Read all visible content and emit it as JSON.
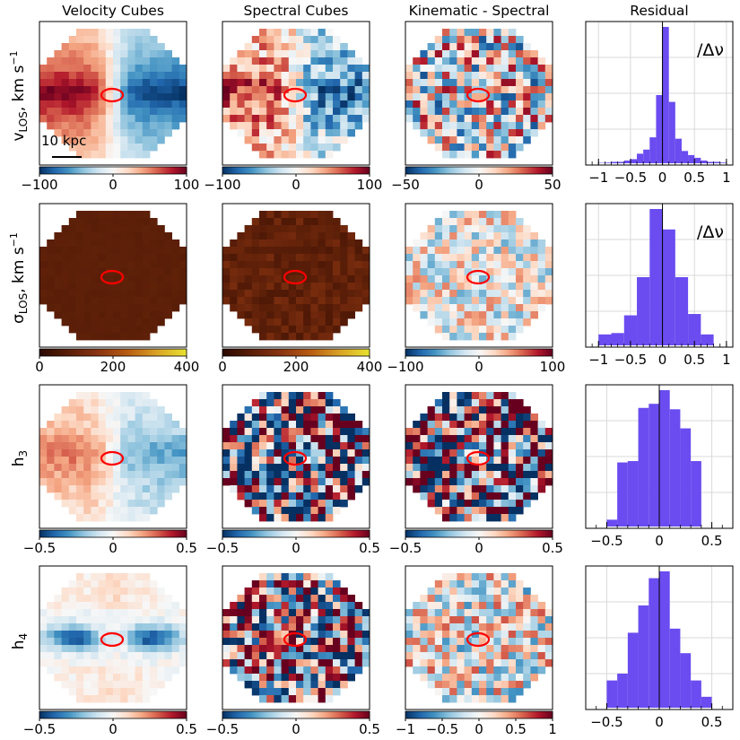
{
  "chart_data": {
    "type": "figure-grid",
    "column_titles": [
      "Velocity Cubes",
      "Spectral Cubes",
      "Kinematic - Spectral",
      "Residual"
    ],
    "row_labels": [
      {
        "main": "v",
        "sub": "LOS",
        "unit": ", km s",
        "sup": "−1"
      },
      {
        "main": "σ",
        "sub": "LOS",
        "unit": ", km s",
        "sup": "−1"
      },
      {
        "main": "h",
        "sub": "3",
        "unit": "",
        "sup": ""
      },
      {
        "main": "h",
        "sub": "4",
        "unit": "",
        "sup": ""
      }
    ],
    "scale_bar_label": "10 kpc",
    "colormaps": {
      "diverging": [
        "#053061",
        "#2166ac",
        "#4393c3",
        "#92c5de",
        "#d1e5f0",
        "#f7f7f7",
        "#fddbc7",
        "#f4a582",
        "#d6604d",
        "#b2182b",
        "#67001f"
      ],
      "heat": [
        "#2a0800",
        "#5a1e08",
        "#8a3411",
        "#b85c12",
        "#d9a326",
        "#e8e233"
      ]
    },
    "hex_map_colors": {
      "ellipse": "#ff0000",
      "outside": "#ffffff"
    },
    "rows": [
      {
        "maps": [
          {
            "pattern": "rotation",
            "amplitude": 1.0,
            "noise": 0.08,
            "seed": 11,
            "cmap": "diverging",
            "colorbar": {
              "min": -100,
              "max": 100,
              "ticks": [
                "−100",
                "0",
                "100"
              ]
            }
          },
          {
            "pattern": "rotation",
            "amplitude": 0.75,
            "noise": 0.4,
            "seed": 12,
            "cmap": "diverging",
            "colorbar": {
              "min": -100,
              "max": 100,
              "ticks": [
                "−100",
                "0",
                "100"
              ]
            }
          },
          {
            "pattern": "noise",
            "amplitude": 0.0,
            "noise": 0.55,
            "seed": 13,
            "cmap": "diverging",
            "colorbar": {
              "min": -50,
              "max": 50,
              "ticks": [
                "−50",
                "0",
                "50"
              ]
            }
          }
        ],
        "histogram": {
          "annotation": "/Δν",
          "xlim": [
            -1.2,
            1.1
          ],
          "ticks": [
            -1,
            -0.5,
            0,
            0.5,
            1
          ],
          "tick_labels": [
            "−1",
            "−0.5",
            "0",
            "0.5",
            "1"
          ],
          "bins": [
            -1.0,
            -0.9,
            -0.8,
            -0.7,
            -0.6,
            -0.5,
            -0.4,
            -0.3,
            -0.2,
            -0.1,
            0.0,
            0.1,
            0.2,
            0.3,
            0.4,
            0.5,
            0.6,
            0.7,
            0.8,
            0.9,
            1.0
          ],
          "counts": [
            0.3,
            0.5,
            1,
            1,
            2,
            3,
            7,
            10,
            19,
            50,
            100,
            45,
            18,
            9,
            6,
            4,
            2,
            1,
            1,
            0.5
          ]
        },
        "color": "#6a4cf0"
      },
      {
        "maps": [
          {
            "pattern": "uniform",
            "level": 0.21,
            "noise": 0.015,
            "seed": 21,
            "cmap": "heat",
            "colorbar": {
              "min": 0,
              "max": 400,
              "ticks": [
                "0",
                "200",
                "400"
              ]
            }
          },
          {
            "pattern": "uniform",
            "level": 0.24,
            "noise": 0.09,
            "seed": 22,
            "cmap": "heat",
            "colorbar": {
              "min": 0,
              "max": 400,
              "ticks": [
                "0",
                "200",
                "400"
              ]
            }
          },
          {
            "pattern": "noise",
            "amplitude": 0.0,
            "noise": 0.32,
            "seed": 23,
            "cmap": "diverging",
            "colorbar": {
              "min": -100,
              "max": 100,
              "ticks": [
                "−100",
                "0",
                "100"
              ]
            }
          }
        ],
        "histogram": {
          "annotation": "/Δν",
          "xlim": [
            -1.2,
            1.1
          ],
          "ticks": [
            -1,
            -0.5,
            0,
            0.5,
            1
          ],
          "tick_labels": [
            "−1",
            "−0.5",
            "0",
            "0.5",
            "1"
          ],
          "bins": [
            -1.0,
            -0.8,
            -0.6,
            -0.4,
            -0.2,
            0.0,
            0.2,
            0.4,
            0.6,
            0.8
          ],
          "counts": [
            8,
            9,
            22,
            50,
            100,
            85,
            50,
            23,
            8
          ]
        },
        "color": "#6a4cf0"
      },
      {
        "maps": [
          {
            "pattern": "rotation",
            "amplitude": 0.55,
            "noise": 0.12,
            "seed": 31,
            "cmap": "diverging",
            "colorbar": {
              "min": -0.5,
              "max": 0.5,
              "ticks": [
                "−0.5",
                "0",
                "0.5"
              ]
            }
          },
          {
            "pattern": "noise",
            "amplitude": 0.0,
            "noise": 0.85,
            "seed": 32,
            "cmap": "diverging",
            "colorbar": {
              "min": -0.5,
              "max": 0.5,
              "ticks": [
                "−0.5",
                "0",
                "0.5"
              ]
            }
          },
          {
            "pattern": "noise",
            "amplitude": 0.0,
            "noise": 0.85,
            "seed": 33,
            "cmap": "diverging",
            "colorbar": {
              "min": -0.5,
              "max": 0.5,
              "ticks": [
                "−0.5",
                "0",
                "0.5"
              ]
            }
          }
        ],
        "histogram": {
          "annotation": "",
          "xlim": [
            -0.7,
            0.7
          ],
          "ticks": [
            -0.5,
            0,
            0.5
          ],
          "tick_labels": [
            "−0.5",
            "0",
            "0.5"
          ],
          "bins": [
            -0.5,
            -0.4,
            -0.3,
            -0.2,
            -0.1,
            0.0,
            0.1,
            0.2,
            0.3,
            0.4
          ],
          "counts": [
            5,
            47,
            48,
            87,
            90,
            100,
            86,
            72,
            48
          ]
        },
        "color": "#6a4cf0"
      },
      {
        "maps": [
          {
            "pattern": "h4",
            "amplitude": 0.9,
            "noise": 0.1,
            "seed": 41,
            "cmap": "diverging",
            "colorbar": {
              "min": -0.5,
              "max": 0.5,
              "ticks": [
                "−0.5",
                "0",
                "0.5"
              ]
            }
          },
          {
            "pattern": "noise",
            "amplitude": 0.0,
            "noise": 0.75,
            "seed": 42,
            "cmap": "diverging",
            "colorbar": {
              "min": -0.5,
              "max": 0.5,
              "ticks": [
                "−0.5",
                "0",
                "0.5"
              ]
            }
          },
          {
            "pattern": "noise",
            "amplitude": 0.0,
            "noise": 0.4,
            "seed": 43,
            "cmap": "diverging",
            "colorbar": {
              "min": -1,
              "max": 1,
              "ticks": [
                "−1",
                "−0.5",
                "0",
                "0.5",
                "1"
              ]
            }
          }
        ],
        "histogram": {
          "annotation": "",
          "xlim": [
            -0.7,
            0.7
          ],
          "ticks": [
            -0.5,
            0,
            0.5
          ],
          "tick_labels": [
            "−0.5",
            "0",
            "0.5"
          ],
          "bins": [
            -0.5,
            -0.4,
            -0.3,
            -0.2,
            -0.1,
            0.0,
            0.1,
            0.2,
            0.3,
            0.4,
            0.5
          ],
          "counts": [
            20,
            25,
            55,
            75,
            95,
            100,
            58,
            40,
            20,
            8
          ]
        },
        "color": "#6a4cf0"
      }
    ]
  }
}
